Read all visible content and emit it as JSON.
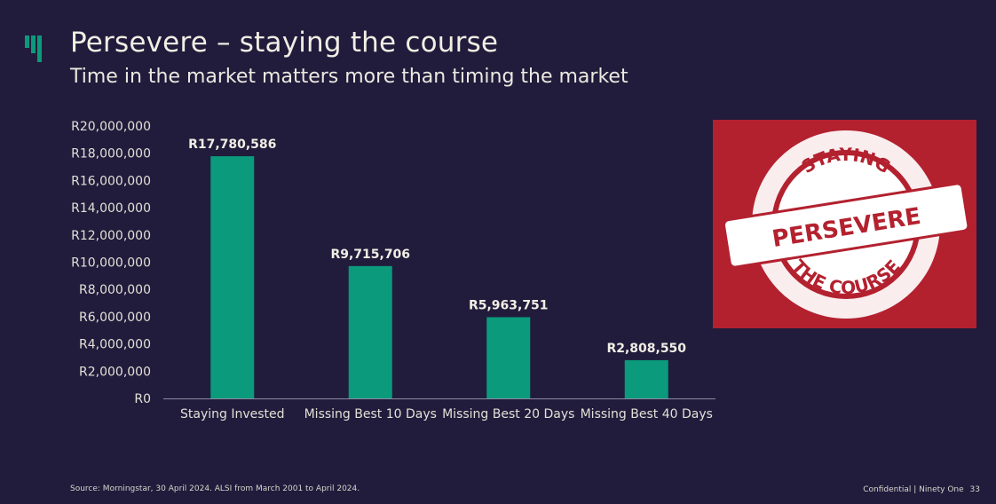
{
  "slide": {
    "title": "Persevere – staying the course",
    "subtitle": "Time in the market matters more than timing the market",
    "source": "Source: Morningstar, 30 April 2024. ALSI from March 2001 to April 2024.",
    "footer": {
      "confidential": "Confidential | Ninety One",
      "page": "33"
    }
  },
  "stamp": {
    "top_text": "STAYING",
    "center_text": "PERSEVERE",
    "bottom_text": "THE COURSE",
    "background_color": "#b3212f"
  },
  "colors": {
    "bar": "#0b9a7b",
    "background": "#211c3c"
  },
  "chart_data": {
    "type": "bar",
    "categories": [
      "Staying Invested",
      "Missing Best 10 Days",
      "Missing Best 20 Days",
      "Missing Best 40 Days"
    ],
    "values": [
      17780586,
      9715706,
      5963751,
      2808550
    ],
    "data_labels": [
      "R17,780,586",
      "R9,715,706",
      "R5,963,751",
      "R2,808,550"
    ],
    "y_ticks": [
      "R0",
      "R2,000,000",
      "R4,000,000",
      "R6,000,000",
      "R8,000,000",
      "R10,000,000",
      "R12,000,000",
      "R14,000,000",
      "R16,000,000",
      "R18,000,000",
      "R20,000,000"
    ],
    "ylim": [
      0,
      20000000
    ],
    "grid": false,
    "xlabel": "",
    "ylabel": ""
  }
}
